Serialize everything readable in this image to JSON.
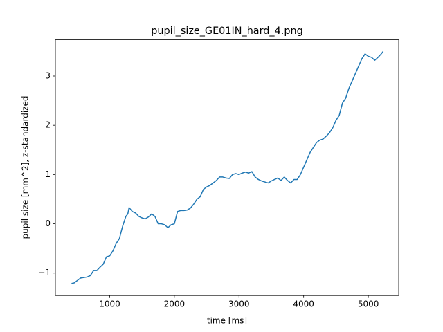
{
  "chart_data": {
    "type": "line",
    "title": "pupil_size_GE01IN_hard_4.png",
    "xlabel": "time [ms]",
    "ylabel": "pupil size [mm^2], z-standardized",
    "color": "#1f77b4",
    "x": [
      410,
      450,
      500,
      550,
      600,
      650,
      700,
      750,
      800,
      850,
      900,
      950,
      1000,
      1050,
      1100,
      1150,
      1200,
      1250,
      1280,
      1300,
      1350,
      1400,
      1450,
      1500,
      1550,
      1600,
      1650,
      1700,
      1750,
      1800,
      1850,
      1900,
      1950,
      2000,
      2050,
      2100,
      2150,
      2200,
      2250,
      2300,
      2350,
      2400,
      2450,
      2500,
      2550,
      2600,
      2650,
      2700,
      2750,
      2800,
      2850,
      2900,
      2950,
      3000,
      3050,
      3100,
      3150,
      3200,
      3250,
      3300,
      3350,
      3400,
      3450,
      3500,
      3550,
      3600,
      3650,
      3700,
      3750,
      3800,
      3850,
      3900,
      3950,
      4000,
      4050,
      4100,
      4150,
      4200,
      4250,
      4300,
      4350,
      4400,
      4450,
      4500,
      4550,
      4600,
      4650,
      4700,
      4750,
      4800,
      4850,
      4900,
      4950,
      5000,
      5050,
      5100,
      5150,
      5200,
      5230
    ],
    "values": [
      -1.21,
      -1.2,
      -1.15,
      -1.1,
      -1.09,
      -1.08,
      -1.05,
      -0.95,
      -0.95,
      -0.88,
      -0.82,
      -0.67,
      -0.65,
      -0.55,
      -0.4,
      -0.3,
      -0.05,
      0.15,
      0.2,
      0.33,
      0.25,
      0.22,
      0.15,
      0.12,
      0.1,
      0.14,
      0.2,
      0.15,
      0.0,
      0.0,
      -0.02,
      -0.08,
      -0.02,
      0.0,
      0.25,
      0.27,
      0.27,
      0.28,
      0.32,
      0.4,
      0.5,
      0.55,
      0.7,
      0.75,
      0.78,
      0.83,
      0.88,
      0.95,
      0.95,
      0.93,
      0.92,
      1.0,
      1.02,
      1.0,
      1.03,
      1.05,
      1.03,
      1.06,
      0.95,
      0.9,
      0.87,
      0.85,
      0.83,
      0.87,
      0.9,
      0.93,
      0.88,
      0.95,
      0.88,
      0.83,
      0.9,
      0.9,
      1.0,
      1.15,
      1.3,
      1.45,
      1.55,
      1.65,
      1.7,
      1.72,
      1.78,
      1.85,
      1.95,
      2.1,
      2.2,
      2.45,
      2.55,
      2.75,
      2.9,
      3.05,
      3.2,
      3.35,
      3.45,
      3.4,
      3.38,
      3.32,
      3.38,
      3.45,
      3.5
    ],
    "xlim": [
      160,
      5470
    ],
    "ylim": [
      -1.456,
      3.736
    ],
    "xticks": [
      1000,
      2000,
      3000,
      4000,
      5000
    ],
    "yticks": [
      {
        "value": -1,
        "label": "−1"
      },
      0,
      1,
      2,
      3
    ]
  }
}
